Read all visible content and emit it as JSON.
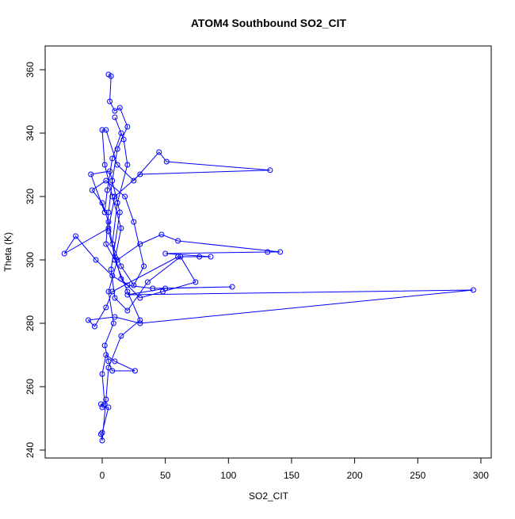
{
  "chart_data": {
    "type": "line",
    "title": "ATOM4 Southbound SO2_CIT",
    "x_label": "SO2_CIT",
    "y_label": "Theta (K)",
    "x": [
      5,
      7,
      6,
      10,
      14,
      20,
      12,
      8,
      5,
      3,
      10,
      15,
      8,
      2,
      0,
      3,
      12,
      25,
      45,
      51,
      133,
      30,
      10,
      5,
      -30,
      -21,
      -5,
      8,
      20,
      40,
      103,
      50,
      20,
      294,
      30,
      10,
      -11,
      -6,
      3,
      8,
      60,
      77,
      86,
      50,
      131,
      141,
      60,
      47,
      30,
      12,
      5,
      9,
      2,
      5,
      8,
      26,
      10,
      3,
      0,
      2,
      -1,
      0,
      5,
      0,
      -1,
      0,
      3,
      5,
      15,
      30,
      20,
      10,
      5,
      0,
      -8,
      3,
      18,
      25,
      33,
      25,
      15,
      8,
      12,
      20,
      17,
      10,
      15,
      8,
      4,
      2,
      -9,
      6,
      14,
      7,
      10,
      20,
      36,
      62,
      74,
      48,
      30,
      15,
      5
    ],
    "series": [
      {
        "color": "#0000ff",
        "values": [
          358.5,
          358,
          350,
          347,
          348,
          342,
          335,
          325,
          315,
          305,
          300,
          310,
          320,
          330,
          341,
          341,
          330,
          325,
          334,
          331,
          328.3,
          327,
          320,
          310,
          302,
          307.5,
          300,
          295,
          292,
          291,
          291.5,
          291,
          289,
          290.5,
          280,
          282,
          281,
          279,
          285,
          290,
          301,
          301,
          301,
          302,
          302.5,
          302.5,
          306,
          308,
          305,
          300,
          290,
          280,
          273,
          268,
          265,
          265,
          268,
          270,
          264,
          254.5,
          254.5,
          253.5,
          253.5,
          245.5,
          245,
          243,
          256,
          266,
          276,
          281,
          290,
          300,
          312,
          318,
          322,
          325,
          320,
          312,
          298,
          292,
          298,
          305,
          318,
          330,
          338,
          345,
          340,
          332,
          322,
          315,
          327,
          328,
          315,
          297,
          288,
          284,
          293,
          301,
          293,
          290,
          288,
          294,
          309
        ]
      }
    ],
    "xlim": [
      -45.2,
      308.2
    ],
    "ylim": [
      237.5,
      367.5
    ],
    "xticks": [
      0,
      50,
      100,
      150,
      200,
      250,
      300
    ],
    "yticks": [
      240,
      260,
      280,
      300,
      320,
      340,
      360
    ],
    "markers": true
  }
}
